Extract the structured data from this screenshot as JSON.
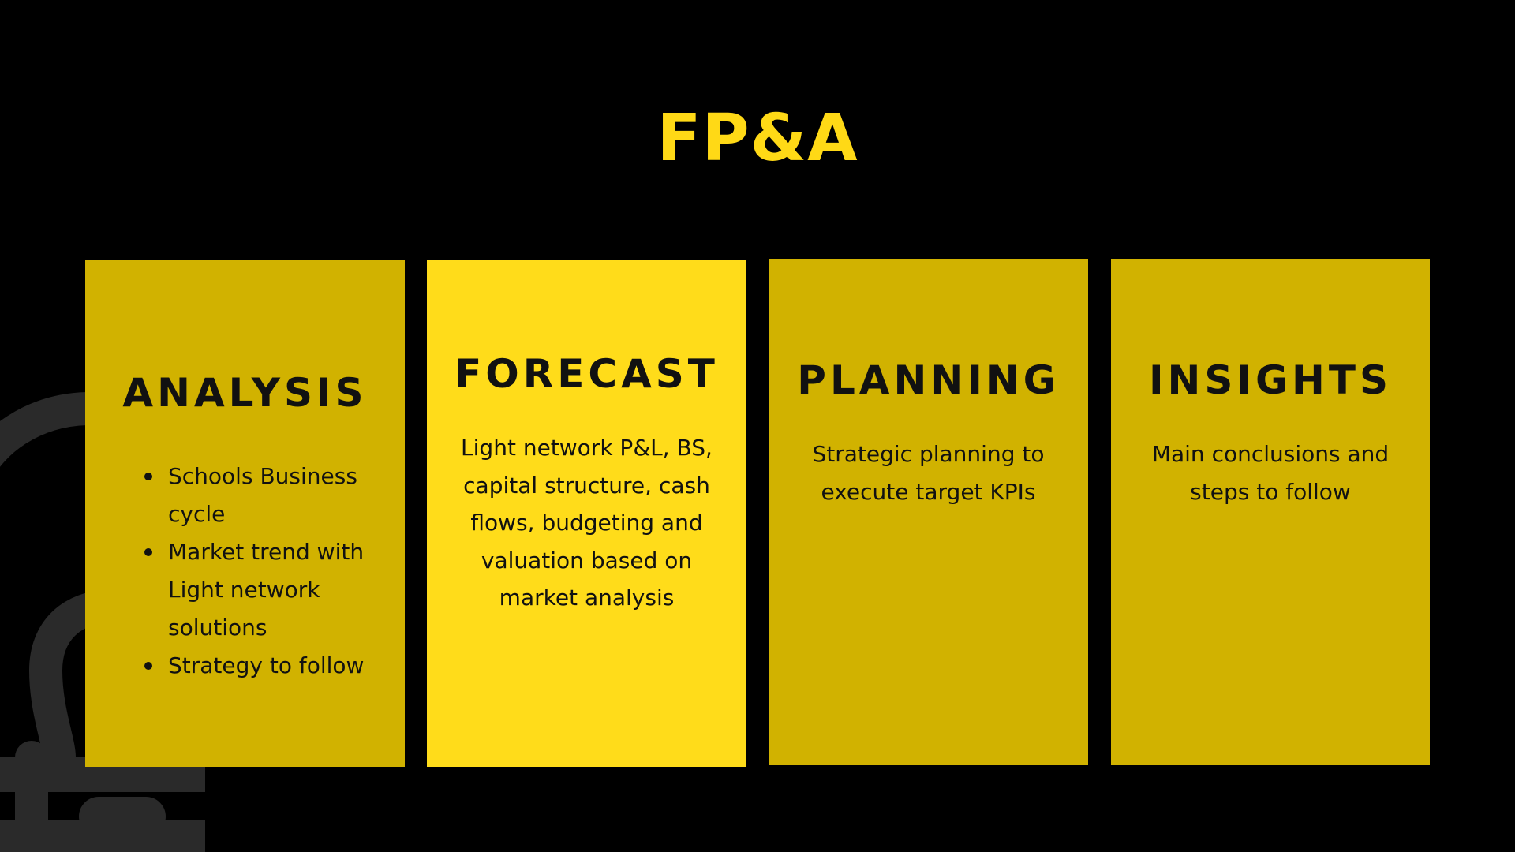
{
  "slide": {
    "title": "FP&A",
    "colors": {
      "background": "#000000",
      "title": "#FFD916",
      "card_dark": "#D1B200",
      "card_bright": "#FFDC1A",
      "text": "#111111",
      "decoration": "#2A2A2A"
    }
  },
  "cards": [
    {
      "heading": "ANALYSIS",
      "bullets": [
        "Schools Business cycle",
        "Market trend with Light network solutions",
        "Strategy to follow"
      ]
    },
    {
      "heading": "FORECAST",
      "text": "Light network P&L, BS, capital structure, cash flows, budgeting and valuation based on market analysis"
    },
    {
      "heading": "PLANNING",
      "text": "Strategic planning to execute target KPIs"
    },
    {
      "heading": "INSIGHTS",
      "text": "Main conclusions and steps to follow"
    }
  ]
}
